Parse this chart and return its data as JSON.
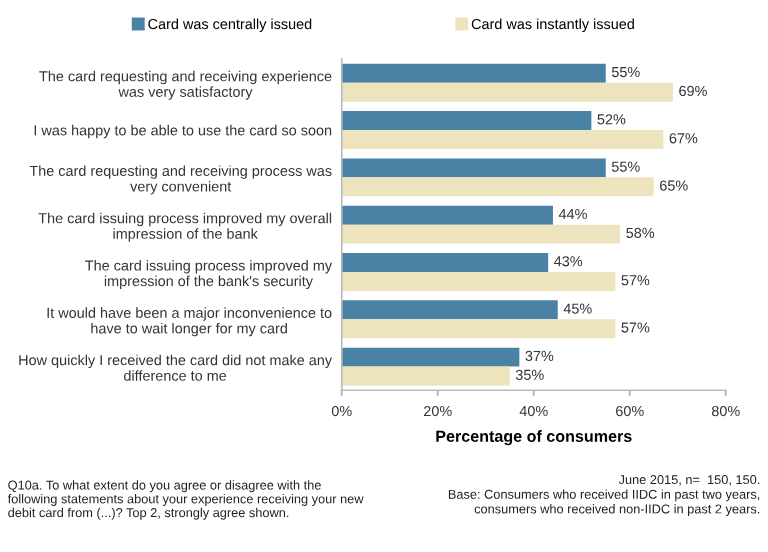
{
  "chart_data": {
    "type": "bar",
    "orientation": "horizontal",
    "categories": [
      "The card requesting and receiving experience was very satisfactory",
      "I was happy to be able to use the card so soon",
      "The card requesting and receiving process was very convenient",
      "The card issuing process improved my overall impression of the bank",
      "The card issuing process improved my impression of the bank's security",
      "It would have been a major inconvenience to have to wait longer for my card",
      "How quickly I received the card did not make any difference to me"
    ],
    "series": [
      {
        "name": "Card was centrally issued",
        "color": "#4a82a6",
        "values": [
          55,
          52,
          55,
          44,
          43,
          45,
          37
        ],
        "value_labels": [
          "55%",
          "52%",
          "55%",
          "44%",
          "43%",
          "45%",
          "37%"
        ]
      },
      {
        "name": "Card was instantly issued",
        "color": "#ede3bd",
        "values": [
          69,
          67,
          65,
          58,
          57,
          57,
          35
        ],
        "value_labels": [
          "69%",
          "67%",
          "65%",
          "58%",
          "57%",
          "57%",
          "35%"
        ]
      }
    ],
    "xlabel": "Percentage of consumers",
    "xlim": [
      0,
      80
    ],
    "xticks": [
      {
        "value": 0,
        "label": "0%"
      },
      {
        "value": 20,
        "label": "20%"
      },
      {
        "value": 40,
        "label": "40%"
      },
      {
        "value": 60,
        "label": "60%"
      },
      {
        "value": 80,
        "label": "80%"
      }
    ],
    "grid": false,
    "legend": "top",
    "annotations": [
      "Q10a. To what extent do you agree or disagree with the following statements about your experience receiving your new debit card from (...)? Top 2, strongly agree shown.",
      "June 2015, n=  150, 150.\nBase: Consumers who received IIDC in past two years,\nconsumers who received non-IIDC in past 2 years."
    ]
  }
}
